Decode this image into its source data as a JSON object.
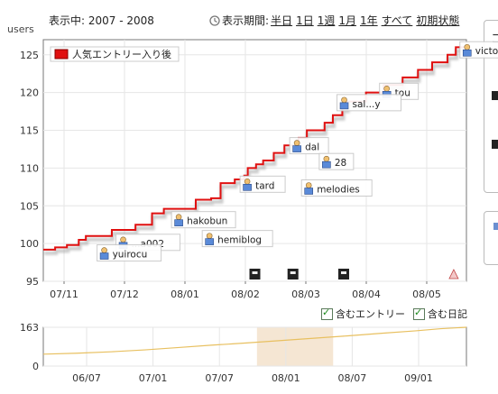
{
  "header": {
    "range_label": "表示中:",
    "range_value": "2007 - 2008",
    "period_label": "表示期間:",
    "period_links": [
      "半日",
      "1日",
      "1週",
      "1月",
      "1年",
      "すべて",
      "初期状態"
    ]
  },
  "checkboxes": [
    {
      "label": "含むエントリー",
      "checked": true
    },
    {
      "label": "含む日記",
      "checked": true
    }
  ],
  "colors": {
    "main_line": "#e01010",
    "overview_line": "#e8c060",
    "selection": "#f5e6d3",
    "legend_swatch": "#e01010"
  },
  "chart_data": [
    {
      "type": "line",
      "title": "",
      "ylabel": "users",
      "ylim": [
        95,
        127
      ],
      "yticks": [
        95,
        100,
        105,
        110,
        115,
        120,
        125
      ],
      "grid": true,
      "legend": {
        "position": "top-left",
        "entries": [
          "人気エントリー入り後"
        ]
      },
      "x_tick_labels": [
        "07/11",
        "07/12",
        "08/01",
        "08/02",
        "08/03",
        "08/04",
        "08/05"
      ],
      "series": [
        {
          "name": "人気エントリー入り後",
          "color": "#e01010",
          "points": [
            [
              0,
              99.2
            ],
            [
              1,
              99.5
            ],
            [
              2,
              99.8
            ],
            [
              3,
              100.5
            ],
            [
              3.6,
              101
            ],
            [
              5.8,
              101.8
            ],
            [
              7.8,
              102.5
            ],
            [
              9.2,
              104
            ],
            [
              10.2,
              104.6
            ],
            [
              12.9,
              105.8
            ],
            [
              14.2,
              106
            ],
            [
              15.0,
              108
            ],
            [
              16.2,
              108.5
            ],
            [
              17.0,
              109
            ],
            [
              17.3,
              110
            ],
            [
              18.0,
              110.5
            ],
            [
              18.6,
              111
            ],
            [
              19.5,
              112
            ],
            [
              20.4,
              113
            ],
            [
              21.6,
              114
            ],
            [
              22.3,
              115
            ],
            [
              23.8,
              116
            ],
            [
              24.5,
              117
            ],
            [
              25.3,
              118
            ],
            [
              25.7,
              118.8
            ],
            [
              27.3,
              120
            ],
            [
              28.8,
              121
            ],
            [
              30.4,
              122
            ],
            [
              31.7,
              123
            ],
            [
              32.9,
              124
            ],
            [
              34.2,
              125
            ],
            [
              34.9,
              126
            ],
            [
              35.8,
              126
            ]
          ]
        }
      ],
      "annotations": [
        {
          "label": "victok",
          "x": 35.4,
          "y": 125.3
        },
        {
          "label": "tou",
          "x": 28.6,
          "y": 119.8
        },
        {
          "label": "sal...y",
          "x": 25.0,
          "y": 118.3
        },
        {
          "label": "dal",
          "x": 21.0,
          "y": 112.6
        },
        {
          "label": "28",
          "x": 23.5,
          "y": 110.5
        },
        {
          "label": "tard",
          "x": 16.8,
          "y": 107.5
        },
        {
          "label": "melodies",
          "x": 22.0,
          "y": 107.0
        },
        {
          "label": "hakobun",
          "x": 11.0,
          "y": 102.8
        },
        {
          "label": "hemiblog",
          "x": 13.6,
          "y": 100.3
        },
        {
          "label": "...a002",
          "x": 6.3,
          "y": 99.8
        },
        {
          "label": "yuirocu",
          "x": 4.7,
          "y": 98.4
        }
      ]
    },
    {
      "type": "area",
      "title": "",
      "ylim": [
        0,
        163
      ],
      "yticks": [
        0,
        163
      ],
      "grid": true,
      "x_tick_labels": [
        "06/07",
        "07/01",
        "07/07",
        "08/01",
        "08/07",
        "09/01"
      ],
      "selection": {
        "from": 0.505,
        "to": 0.685
      },
      "series": [
        {
          "name": "",
          "color": "#e8c060",
          "points": [
            [
              0,
              50
            ],
            [
              0.08,
              54
            ],
            [
              0.16,
              60
            ],
            [
              0.24,
              68
            ],
            [
              0.32,
              78
            ],
            [
              0.4,
              88
            ],
            [
              0.48,
              97
            ],
            [
              0.56,
              107
            ],
            [
              0.64,
              117
            ],
            [
              0.72,
              127
            ],
            [
              0.8,
              138
            ],
            [
              0.88,
              148
            ],
            [
              0.94,
              157
            ],
            [
              1.0,
              163
            ]
          ]
        }
      ]
    }
  ]
}
